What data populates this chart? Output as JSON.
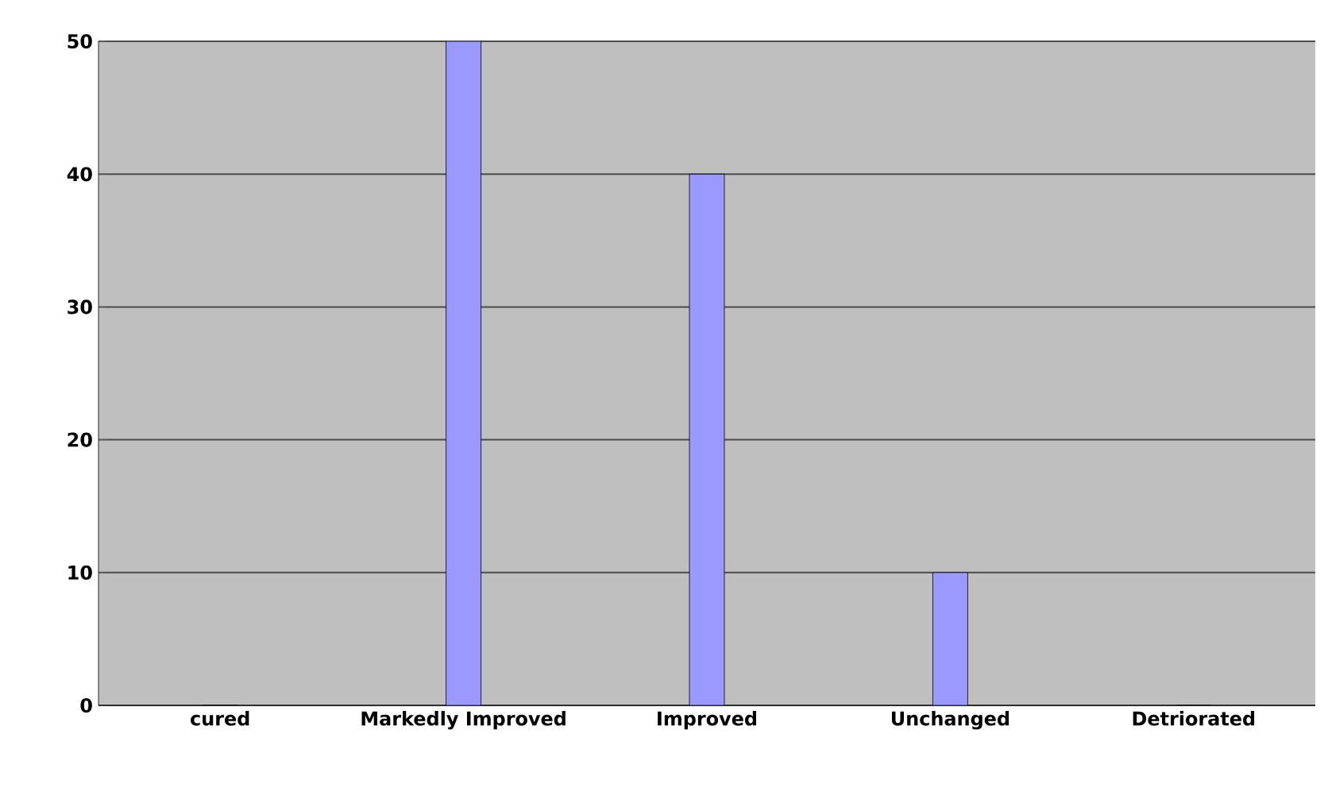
{
  "chart_data": {
    "type": "bar",
    "categories": [
      "cured",
      "Markedly Improved",
      "Improved",
      "Unchanged",
      "Detriorated"
    ],
    "values": [
      0,
      50,
      40,
      10,
      0
    ],
    "color": "#9999ff",
    "ylim": [
      0,
      50
    ],
    "yticks": [
      0,
      10,
      20,
      30,
      40,
      50
    ],
    "grid": "y"
  }
}
